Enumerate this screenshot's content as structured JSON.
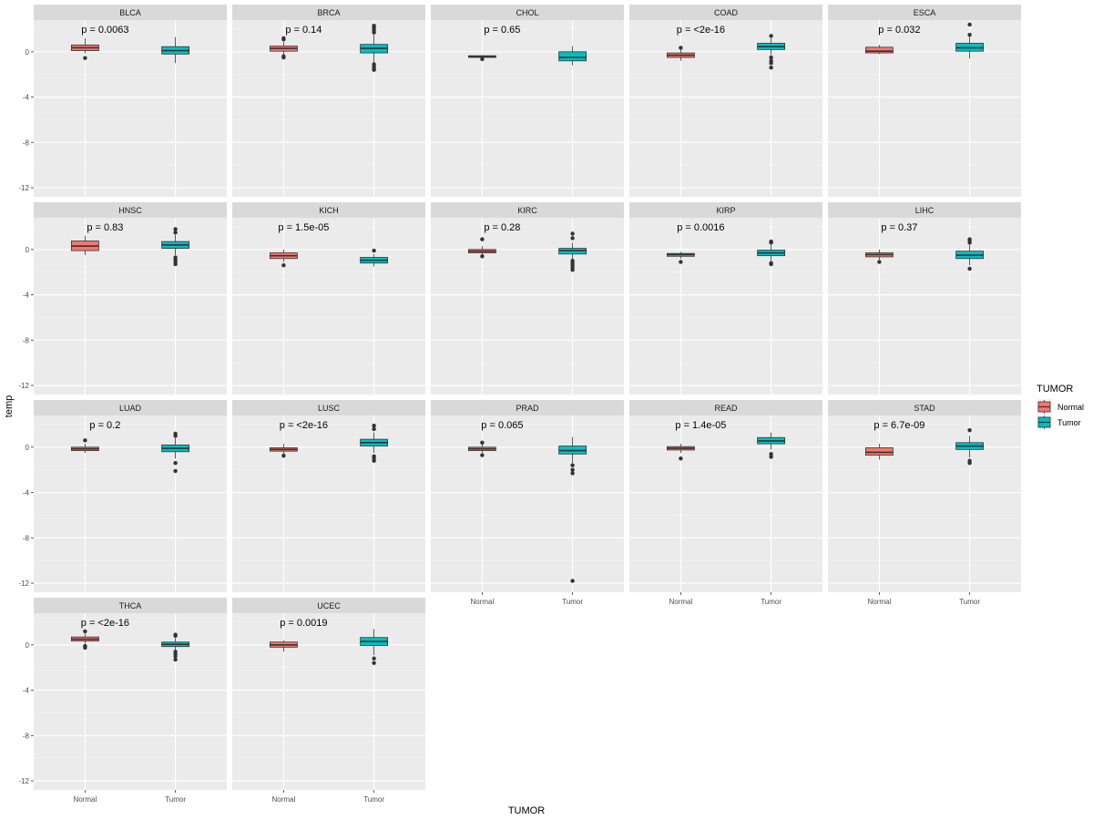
{
  "chart_data": {
    "type": "boxplot",
    "ylabel": "temp",
    "xlabel": "TUMOR",
    "categories": [
      "Normal",
      "Tumor"
    ],
    "y_ticks": [
      -12,
      -8,
      -4,
      0
    ],
    "ylim": [
      -12.8,
      2.8
    ],
    "colors": {
      "Normal": "#F8766D",
      "Tumor": "#00BFC4"
    },
    "legend": {
      "title": "TUMOR",
      "position": "right",
      "entries": [
        {
          "label": "Normal",
          "color": "#F8766D"
        },
        {
          "label": "Tumor",
          "color": "#00BFC4"
        }
      ]
    },
    "panels": [
      {
        "name": "BLCA",
        "p": "p = 0.0063",
        "show_x_axis": false,
        "boxes": [
          {
            "group": "Normal",
            "q1": 0.1,
            "median": 0.35,
            "q3": 0.6,
            "lo": -0.15,
            "hi": 1.2,
            "outliers": [
              -0.55
            ]
          },
          {
            "group": "Tumor",
            "q1": -0.2,
            "median": 0.1,
            "q3": 0.45,
            "lo": -1.0,
            "hi": 1.3,
            "outliers": []
          }
        ]
      },
      {
        "name": "BRCA",
        "p": "p = 0.14",
        "show_x_axis": false,
        "boxes": [
          {
            "group": "Normal",
            "q1": 0.05,
            "median": 0.3,
            "q3": 0.5,
            "lo": -0.3,
            "hi": 0.9,
            "outliers": [
              1.1,
              1.2,
              -0.4,
              -0.5
            ]
          },
          {
            "group": "Tumor",
            "q1": -0.1,
            "median": 0.3,
            "q3": 0.65,
            "lo": -0.9,
            "hi": 1.5,
            "outliers": [
              1.7,
              1.9,
              2.1,
              2.3,
              -1.1,
              -1.3,
              -1.5,
              -1.6
            ]
          }
        ]
      },
      {
        "name": "CHOL",
        "p": "p = 0.65",
        "show_x_axis": false,
        "boxes": [
          {
            "group": "Normal",
            "q1": -0.5,
            "median": -0.42,
            "q3": -0.35,
            "lo": -0.55,
            "hi": -0.3,
            "outliers": [
              -0.65
            ]
          },
          {
            "group": "Tumor",
            "q1": -0.8,
            "median": -0.5,
            "q3": 0.0,
            "lo": -1.2,
            "hi": 0.5,
            "outliers": []
          }
        ]
      },
      {
        "name": "COAD",
        "p": "p = <2e-16",
        "show_x_axis": false,
        "boxes": [
          {
            "group": "Normal",
            "q1": -0.5,
            "median": -0.3,
            "q3": -0.1,
            "lo": -0.8,
            "hi": 0.2,
            "outliers": [
              0.35
            ]
          },
          {
            "group": "Tumor",
            "q1": 0.2,
            "median": 0.45,
            "q3": 0.75,
            "lo": -0.3,
            "hi": 1.2,
            "outliers": [
              1.4,
              -0.5,
              -0.8,
              -1.0,
              -1.4
            ]
          }
        ]
      },
      {
        "name": "ESCA",
        "p": "p = 0.032",
        "show_x_axis": false,
        "boxes": [
          {
            "group": "Normal",
            "q1": -0.1,
            "median": 0.05,
            "q3": 0.4,
            "lo": -0.2,
            "hi": 0.6,
            "outliers": []
          },
          {
            "group": "Tumor",
            "q1": 0.05,
            "median": 0.35,
            "q3": 0.75,
            "lo": -0.6,
            "hi": 1.4,
            "outliers": [
              1.5,
              2.4
            ]
          }
        ]
      },
      {
        "name": "HNSC",
        "p": "p = 0.83",
        "show_x_axis": false,
        "boxes": [
          {
            "group": "Normal",
            "q1": -0.1,
            "median": 0.3,
            "q3": 0.75,
            "lo": -0.5,
            "hi": 1.2,
            "outliers": []
          },
          {
            "group": "Tumor",
            "q1": 0.1,
            "median": 0.4,
            "q3": 0.7,
            "lo": -0.5,
            "hi": 1.3,
            "outliers": [
              1.5,
              1.8,
              -0.7,
              -0.9,
              -1.1,
              -1.3
            ]
          }
        ]
      },
      {
        "name": "KICH",
        "p": "p = 1.5e-05",
        "show_x_axis": false,
        "boxes": [
          {
            "group": "Normal",
            "q1": -0.8,
            "median": -0.55,
            "q3": -0.3,
            "lo": -1.1,
            "hi": 0.0,
            "outliers": [
              -1.4
            ]
          },
          {
            "group": "Tumor",
            "q1": -1.2,
            "median": -0.95,
            "q3": -0.7,
            "lo": -1.5,
            "hi": -0.4,
            "outliers": [
              -0.1
            ]
          }
        ]
      },
      {
        "name": "KIRC",
        "p": "p = 0.28",
        "show_x_axis": false,
        "boxes": [
          {
            "group": "Normal",
            "q1": -0.3,
            "median": -0.15,
            "q3": 0.0,
            "lo": -0.5,
            "hi": 0.3,
            "outliers": [
              0.9,
              -0.6
            ]
          },
          {
            "group": "Tumor",
            "q1": -0.4,
            "median": -0.1,
            "q3": 0.1,
            "lo": -0.9,
            "hi": 0.6,
            "outliers": [
              1.0,
              1.4,
              -1.0,
              -1.2,
              -1.4,
              -1.6,
              -1.8
            ]
          }
        ]
      },
      {
        "name": "KIRP",
        "p": "p = 0.0016",
        "show_x_axis": false,
        "boxes": [
          {
            "group": "Normal",
            "q1": -0.6,
            "median": -0.45,
            "q3": -0.35,
            "lo": -0.8,
            "hi": -0.2,
            "outliers": [
              -1.1
            ]
          },
          {
            "group": "Tumor",
            "q1": -0.55,
            "median": -0.3,
            "q3": -0.05,
            "lo": -1.0,
            "hi": 0.4,
            "outliers": [
              0.6,
              0.7,
              -1.2,
              -1.3
            ]
          }
        ]
      },
      {
        "name": "LIHC",
        "p": "p = 0.37",
        "show_x_axis": false,
        "boxes": [
          {
            "group": "Normal",
            "q1": -0.65,
            "median": -0.45,
            "q3": -0.3,
            "lo": -0.9,
            "hi": 0.0,
            "outliers": [
              -1.1
            ]
          },
          {
            "group": "Tumor",
            "q1": -0.8,
            "median": -0.5,
            "q3": -0.15,
            "lo": -1.4,
            "hi": 0.4,
            "outliers": [
              0.6,
              0.8,
              0.9,
              -1.7
            ]
          }
        ]
      },
      {
        "name": "LUAD",
        "p": "p = 0.2",
        "show_x_axis": false,
        "boxes": [
          {
            "group": "Normal",
            "q1": -0.3,
            "median": -0.15,
            "q3": 0.0,
            "lo": -0.5,
            "hi": 0.3,
            "outliers": [
              0.6
            ]
          },
          {
            "group": "Tumor",
            "q1": -0.4,
            "median": -0.1,
            "q3": 0.2,
            "lo": -1.0,
            "hi": 0.8,
            "outliers": [
              1.0,
              1.2,
              -1.4,
              -2.1
            ]
          }
        ]
      },
      {
        "name": "LUSC",
        "p": "p = <2e-16",
        "show_x_axis": false,
        "boxes": [
          {
            "group": "Normal",
            "q1": -0.35,
            "median": -0.2,
            "q3": -0.05,
            "lo": -0.6,
            "hi": 0.3,
            "outliers": [
              -0.75
            ]
          },
          {
            "group": "Tumor",
            "q1": 0.1,
            "median": 0.4,
            "q3": 0.7,
            "lo": -0.5,
            "hi": 1.3,
            "outliers": [
              1.6,
              1.9,
              -0.8,
              -1.0,
              -1.2
            ]
          }
        ]
      },
      {
        "name": "PRAD",
        "p": "p = 0.065",
        "show_x_axis": true,
        "boxes": [
          {
            "group": "Normal",
            "q1": -0.3,
            "median": -0.15,
            "q3": 0.0,
            "lo": -0.5,
            "hi": 0.3,
            "outliers": [
              0.4,
              -0.7
            ]
          },
          {
            "group": "Tumor",
            "q1": -0.6,
            "median": -0.3,
            "q3": 0.1,
            "lo": -1.4,
            "hi": 0.9,
            "outliers": [
              -1.6,
              -2.0,
              -2.3,
              -11.8
            ]
          }
        ]
      },
      {
        "name": "READ",
        "p": "p = 1.4e-05",
        "show_x_axis": true,
        "boxes": [
          {
            "group": "Normal",
            "q1": -0.25,
            "median": -0.1,
            "q3": 0.05,
            "lo": -0.5,
            "hi": 0.3,
            "outliers": [
              -1.0
            ]
          },
          {
            "group": "Tumor",
            "q1": 0.3,
            "median": 0.55,
            "q3": 0.85,
            "lo": -0.2,
            "hi": 1.3,
            "outliers": [
              -0.6,
              -0.85
            ]
          }
        ]
      },
      {
        "name": "STAD",
        "p": "p = 6.7e-09",
        "show_x_axis": true,
        "boxes": [
          {
            "group": "Normal",
            "q1": -0.7,
            "median": -0.45,
            "q3": -0.05,
            "lo": -1.1,
            "hi": 0.3,
            "outliers": []
          },
          {
            "group": "Tumor",
            "q1": -0.2,
            "median": 0.1,
            "q3": 0.4,
            "lo": -0.9,
            "hi": 1.0,
            "outliers": [
              1.5,
              -1.2,
              -1.4
            ]
          }
        ]
      },
      {
        "name": "THCA",
        "p": "p = <2e-16",
        "show_x_axis": true,
        "boxes": [
          {
            "group": "Normal",
            "q1": 0.35,
            "median": 0.5,
            "q3": 0.7,
            "lo": 0.1,
            "hi": 1.0,
            "outliers": [
              1.2,
              -0.1,
              -0.25
            ]
          },
          {
            "group": "Tumor",
            "q1": -0.15,
            "median": 0.05,
            "q3": 0.25,
            "lo": -0.5,
            "hi": 0.6,
            "outliers": [
              0.8,
              0.9,
              -0.6,
              -0.8,
              -1.0,
              -1.3
            ]
          }
        ]
      },
      {
        "name": "UCEC",
        "p": "p = 0.0019",
        "show_x_axis": true,
        "boxes": [
          {
            "group": "Normal",
            "q1": -0.2,
            "median": 0.0,
            "q3": 0.25,
            "lo": -0.6,
            "hi": 0.4,
            "outliers": []
          },
          {
            "group": "Tumor",
            "q1": -0.05,
            "median": 0.3,
            "q3": 0.65,
            "lo": -0.9,
            "hi": 1.4,
            "outliers": [
              -1.2,
              -1.6
            ]
          }
        ]
      }
    ]
  }
}
